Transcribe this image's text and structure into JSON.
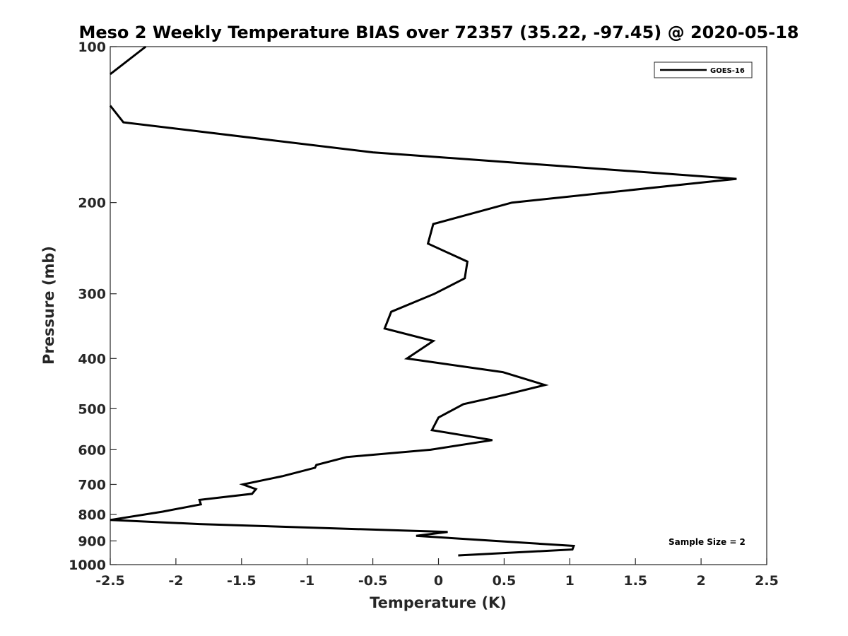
{
  "chart_data": {
    "type": "line",
    "title": "Meso 2 Weekly Temperature BIAS over 72357 (35.22, -97.45) @ 2020-05-18",
    "xlabel": "Temperature (K)",
    "ylabel": "Pressure (mb)",
    "xlim": [
      -2.5,
      2.5
    ],
    "ylim": [
      1000,
      100
    ],
    "y_scale": "log",
    "y_reversed": true,
    "grid": false,
    "legend_position": "top-right",
    "x_ticks": [
      "-2.5",
      "-2",
      "-1.5",
      "-1",
      "-0.5",
      "0",
      "0.5",
      "1",
      "1.5",
      "2",
      "2.5"
    ],
    "y_ticks": [
      "100",
      "200",
      "300",
      "400",
      "500",
      "600",
      "700",
      "800",
      "900",
      "1000"
    ],
    "annotation": "Sample Size = 2",
    "series": [
      {
        "name": "GOES-16",
        "color": "#000000",
        "segments": [
          {
            "x": [
              -2.23,
              -2.5
            ],
            "y": [
              100,
              113
            ]
          },
          {
            "x": [
              -2.5,
              -2.4,
              -0.5,
              2.27,
              0.56,
              -0.04,
              -0.08,
              0.22,
              0.2,
              -0.03,
              -0.36,
              -0.41,
              -0.04,
              -0.24,
              0.49,
              0.81,
              0.51,
              0.19,
              0.0,
              -0.05,
              0.41,
              -0.06,
              -0.7,
              -0.93,
              -0.94,
              -1.19,
              -1.49,
              -1.39,
              -1.42,
              -1.82,
              -1.81,
              -2.1,
              -2.5,
              -1.82,
              0.07,
              -0.17,
              1.03,
              1.02,
              0.15
            ],
            "y": [
              130,
              140,
              160,
              180,
              200,
              220,
              240,
              260,
              280,
              300,
              325,
              350,
              370,
              400,
              425,
              450,
              470,
              490,
              520,
              550,
              575,
              600,
              620,
              642,
              650,
              675,
              700,
              715,
              730,
              750,
              765,
              790,
              820,
              835,
              865,
              880,
              920,
              935,
              960
            ]
          }
        ]
      }
    ]
  }
}
